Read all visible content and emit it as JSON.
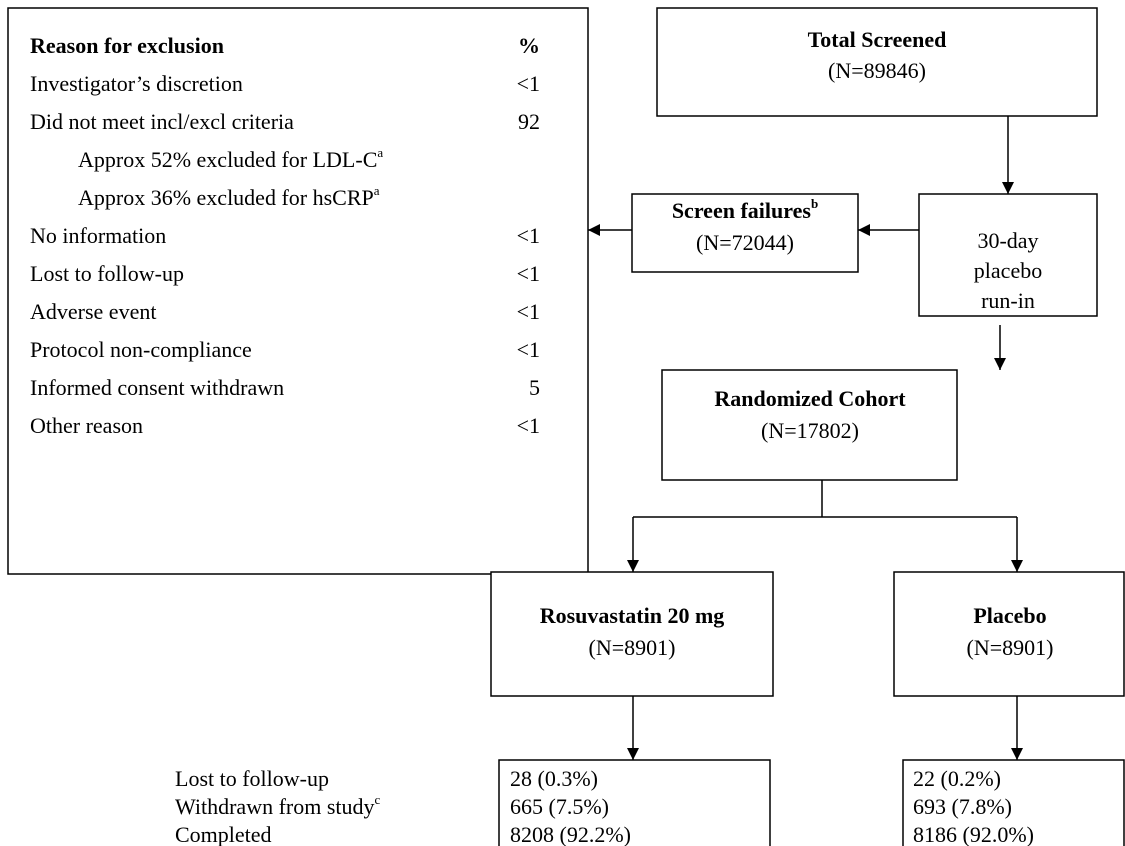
{
  "exclusion_table": {
    "header": {
      "reason": "Reason for exclusion",
      "percent": "%"
    },
    "rows": [
      {
        "reason": "Investigator’s discretion",
        "percent": "<1"
      },
      {
        "reason": "Did not meet incl/excl criteria",
        "percent": "92"
      },
      {
        "reason": "Approx 52% excluded for LDL-C",
        "note": "a"
      },
      {
        "reason": "Approx 36% excluded for hsCRP",
        "note": "a"
      },
      {
        "reason": "No information",
        "percent": "<1"
      },
      {
        "reason": "Lost to follow-up",
        "percent": "<1"
      },
      {
        "reason": "Adverse event",
        "percent": "<1"
      },
      {
        "reason": "Protocol non-compliance",
        "percent": "<1"
      },
      {
        "reason": "Informed consent withdrawn",
        "percent": "5"
      },
      {
        "reason": "Other reason",
        "percent": "<1"
      }
    ]
  },
  "nodes": {
    "total_screened": {
      "title": "Total Screened",
      "count": "(N=89846)"
    },
    "screen_failures": {
      "title": "Screen failures",
      "note": "b",
      "count": "(N=72044)"
    },
    "run_in": {
      "lines": [
        "30-day",
        "placebo",
        "run-in"
      ]
    },
    "randomized": {
      "title": "Randomized Cohort",
      "count": "(N=17802)"
    },
    "rosuvastatin": {
      "title": "Rosuvastatin 20 mg",
      "count": "(N=8901)"
    },
    "placebo": {
      "title": "Placebo",
      "count": "(N=8901)"
    }
  },
  "outcomes": {
    "labels": [
      {
        "text": "Lost to follow-up"
      },
      {
        "text": "Withdrawn from study",
        "note": "c"
      },
      {
        "text": "Completed"
      }
    ],
    "rosuvastatin": [
      "28 (0.3%)",
      "665 (7.5%)",
      "8208 (92.2%)"
    ],
    "placebo": [
      "22 (0.2%)",
      "693 (7.8%)",
      "8186 (92.0%)"
    ]
  }
}
